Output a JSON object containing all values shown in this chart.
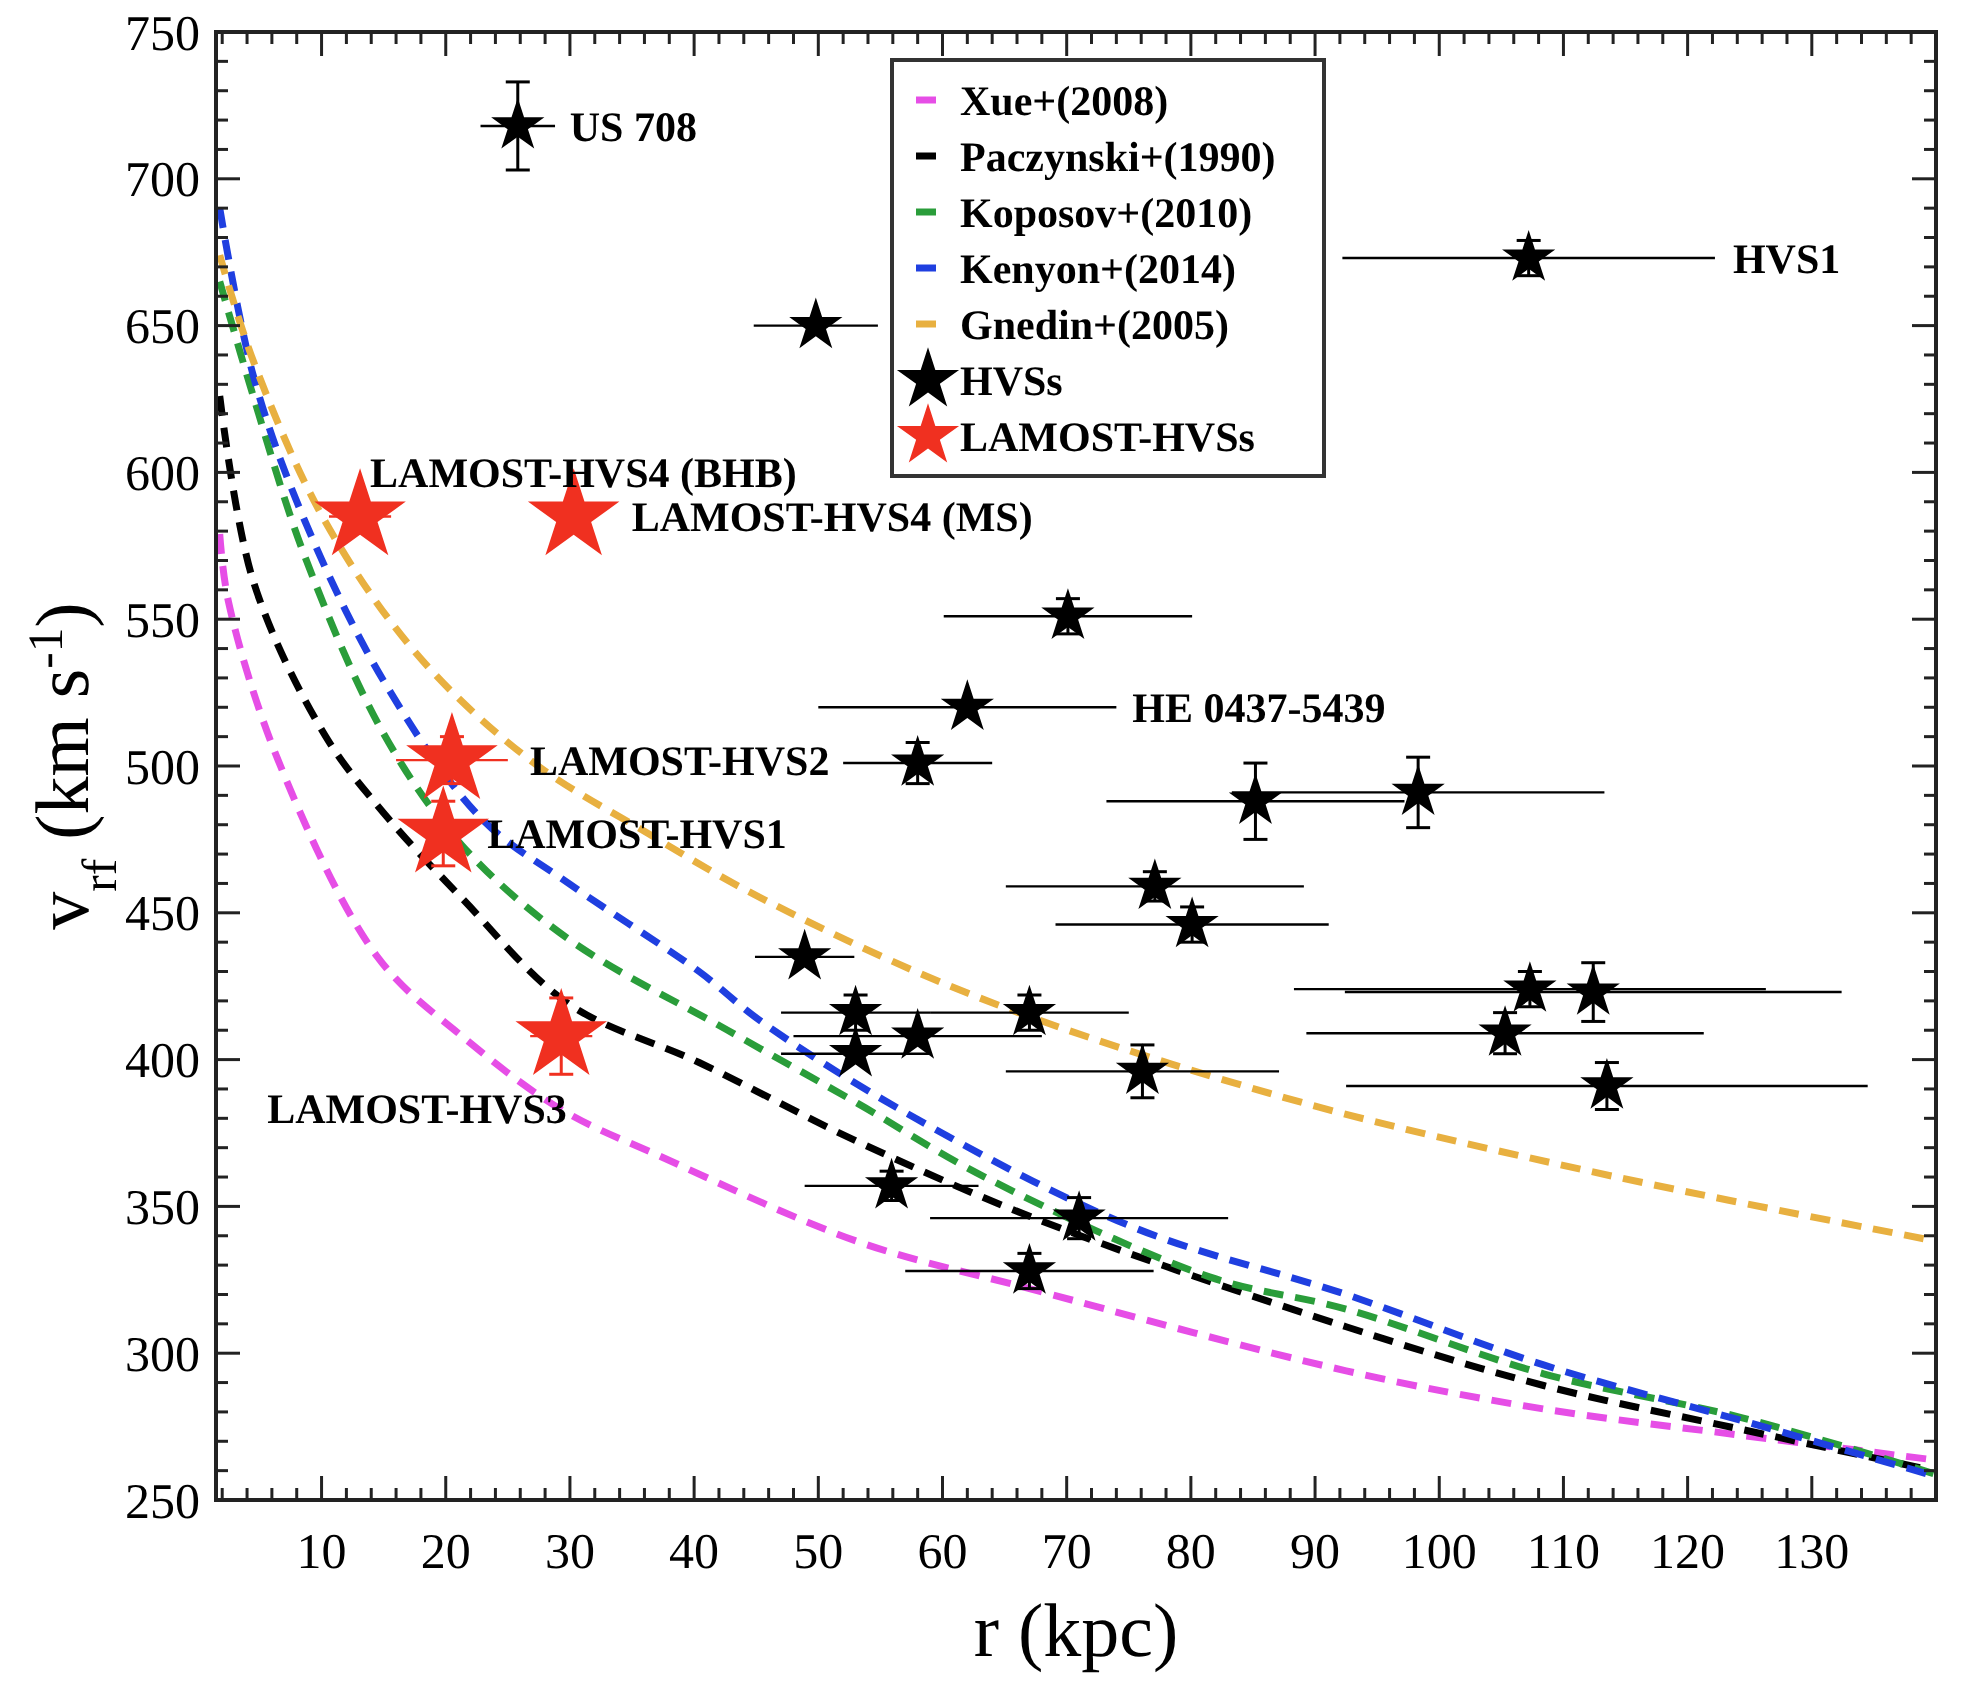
{
  "chart_data": {
    "type": "scatter",
    "xlabel": "r (kpc)",
    "ylabel": "v$_{rf}$ (km s$^{-1}$)",
    "xlim": [
      1.5,
      140
    ],
    "ylim": [
      250,
      750
    ],
    "xticks": [
      10,
      20,
      30,
      40,
      50,
      60,
      70,
      80,
      90,
      100,
      110,
      120,
      130,
      {
        "value": 2,
        "label": null
      },
      {
        "value": 4,
        "label": null
      },
      {
        "value": 6,
        "label": null
      },
      {
        "value": 8,
        "label": null
      },
      {
        "value": 12,
        "label": null
      },
      {
        "value": 14,
        "label": null
      },
      {
        "value": 16,
        "label": null
      },
      {
        "value": 18,
        "label": null
      },
      {
        "value": 22,
        "label": null
      },
      {
        "value": 24,
        "label": null
      },
      {
        "value": 26,
        "label": null
      },
      {
        "value": 28,
        "label": null
      },
      {
        "value": 32,
        "label": null
      },
      {
        "value": 34,
        "label": null
      },
      {
        "value": 36,
        "label": null
      },
      {
        "value": 38,
        "label": null
      },
      {
        "value": 42,
        "label": null
      },
      {
        "value": 44,
        "label": null
      },
      {
        "value": 46,
        "label": null
      },
      {
        "value": 48,
        "label": null
      },
      {
        "value": 52,
        "label": null
      },
      {
        "value": 54,
        "label": null
      },
      {
        "value": 56,
        "label": null
      },
      {
        "value": 58,
        "label": null
      },
      {
        "value": 62,
        "label": null
      },
      {
        "value": 64,
        "label": null
      },
      {
        "value": 66,
        "label": null
      },
      {
        "value": 68,
        "label": null
      },
      {
        "value": 72,
        "label": null
      },
      {
        "value": 74,
        "label": null
      },
      {
        "value": 76,
        "label": null
      },
      {
        "value": 78,
        "label": null
      },
      {
        "value": 82,
        "label": null
      },
      {
        "value": 84,
        "label": null
      },
      {
        "value": 86,
        "label": null
      },
      {
        "value": 88,
        "label": null
      },
      {
        "value": 92,
        "label": null
      },
      {
        "value": 94,
        "label": null
      },
      {
        "value": 96,
        "label": null
      },
      {
        "value": 98,
        "label": null
      },
      {
        "value": 102,
        "label": null
      },
      {
        "value": 104,
        "label": null
      },
      {
        "value": 106,
        "label": null
      },
      {
        "value": 108,
        "label": null
      },
      {
        "value": 112,
        "label": null
      },
      {
        "value": 114,
        "label": null
      },
      {
        "value": 116,
        "label": null
      },
      {
        "value": 118,
        "label": null
      },
      {
        "value": 122,
        "label": null
      },
      {
        "value": 124,
        "label": null
      },
      {
        "value": 126,
        "label": null
      },
      {
        "value": 128,
        "label": null
      },
      {
        "value": 132,
        "label": null
      },
      {
        "value": 134,
        "label": null
      },
      {
        "value": 136,
        "label": null
      },
      {
        "value": 138,
        "label": null
      }
    ],
    "yticks": [
      250,
      300,
      350,
      400,
      450,
      500,
      550,
      600,
      650,
      700,
      750,
      {
        "value": 260,
        "label": null
      },
      {
        "value": 270,
        "label": null
      },
      {
        "value": 280,
        "label": null
      },
      {
        "value": 290,
        "label": null
      },
      {
        "value": 310,
        "label": null
      },
      {
        "value": 320,
        "label": null
      },
      {
        "value": 330,
        "label": null
      },
      {
        "value": 340,
        "label": null
      },
      {
        "value": 360,
        "label": null
      },
      {
        "value": 370,
        "label": null
      },
      {
        "value": 380,
        "label": null
      },
      {
        "value": 390,
        "label": null
      },
      {
        "value": 410,
        "label": null
      },
      {
        "value": 420,
        "label": null
      },
      {
        "value": 430,
        "label": null
      },
      {
        "value": 440,
        "label": null
      },
      {
        "value": 460,
        "label": null
      },
      {
        "value": 470,
        "label": null
      },
      {
        "value": 480,
        "label": null
      },
      {
        "value": 490,
        "label": null
      },
      {
        "value": 510,
        "label": null
      },
      {
        "value": 520,
        "label": null
      },
      {
        "value": 530,
        "label": null
      },
      {
        "value": 540,
        "label": null
      },
      {
        "value": 560,
        "label": null
      },
      {
        "value": 570,
        "label": null
      },
      {
        "value": 580,
        "label": null
      },
      {
        "value": 590,
        "label": null
      },
      {
        "value": 610,
        "label": null
      },
      {
        "value": 620,
        "label": null
      },
      {
        "value": 630,
        "label": null
      },
      {
        "value": 640,
        "label": null
      },
      {
        "value": 660,
        "label": null
      },
      {
        "value": 670,
        "label": null
      },
      {
        "value": 680,
        "label": null
      },
      {
        "value": 690,
        "label": null
      },
      {
        "value": 710,
        "label": null
      },
      {
        "value": 720,
        "label": null
      },
      {
        "value": 730,
        "label": null
      },
      {
        "value": 740,
        "label": null
      }
    ],
    "grid": false,
    "legend": "top",
    "line_style": "dashed",
    "series": [
      {
        "name": "Xue+(2008)",
        "type": "line",
        "marker": "none",
        "color": "#e64ee6",
        "x": [
          1.8,
          2.5,
          6.5,
          14.5,
          21.3,
          29.3,
          37.3,
          53.2,
          67,
          92.5,
          108.4,
          124.4,
          139.2
        ],
        "values": [
          579,
          556,
          502,
          435,
          408,
          383,
          367,
          338,
          322,
          294,
          281,
          272,
          264
        ]
      },
      {
        "name": "Paczynski+(1990)",
        "type": "line",
        "marker": "none",
        "color": "#000000",
        "x": [
          1.8,
          4.5,
          10.2,
          15,
          21.3,
          29.9,
          40.4,
          53.2,
          68,
          92.5,
          108.4,
          124.4,
          138.7
        ],
        "values": [
          626,
          563,
          511,
          484,
          455,
          419,
          399,
          372,
          345,
          309,
          289,
          274,
          261
        ]
      },
      {
        "name": "Koposov+(2010)",
        "type": "line",
        "marker": "none",
        "color": "#2a9d3a",
        "x": [
          1.8,
          4.5,
          8.6,
          15,
          21.3,
          29.9,
          42.7,
          53.2,
          63.4,
          81.5,
          92.5,
          108.4,
          124.4,
          139.8
        ],
        "values": [
          665,
          626,
          572,
          511,
          473,
          441,
          410,
          385,
          360,
          326,
          315,
          293,
          278,
          259
        ]
      },
      {
        "name": "Kenyon+(2014)",
        "type": "line",
        "marker": "none",
        "color": "#1f3fe0",
        "x": [
          1.8,
          4.5,
          8.6,
          15,
          22.9,
          29.9,
          40.4,
          45.4,
          57,
          75.3,
          92.5,
          108.4,
          124.4,
          139.2
        ],
        "values": [
          690,
          633,
          584,
          529,
          482,
          460,
          430,
          413,
          382,
          343,
          320,
          296,
          277,
          259
        ]
      },
      {
        "name": "Gnedin+(2005)",
        "type": "line",
        "marker": "none",
        "color": "#e8b040",
        "x": [
          1.8,
          4.5,
          10.2,
          17.7,
          26.8,
          36.3,
          45.4,
          63,
          87.6,
          112.1,
          139
        ],
        "values": [
          674,
          638,
          584,
          538,
          502,
          477,
          455,
          421,
          387,
          362,
          339
        ]
      },
      {
        "name": "HVSs",
        "marker": "star",
        "color": "#000000",
        "x": [
          25.8,
          49.8,
          107.2,
          70.1,
          62,
          58,
          85.2,
          98.3,
          77.1,
          80.1,
          48.9,
          53,
          58,
          53,
          67,
          76.1,
          107.3,
          112.4,
          105.3,
          113.5,
          55.9,
          71,
          67
        ],
        "values": [
          718,
          650,
          673,
          551,
          520,
          501,
          488,
          491,
          459,
          446,
          435,
          416,
          408,
          402,
          416,
          396,
          424,
          423,
          409,
          391,
          357,
          346,
          328
        ],
        "errors": [
          15,
          null,
          6,
          6,
          null,
          7,
          13,
          12,
          5,
          6,
          null,
          6,
          null,
          null,
          6,
          9,
          6,
          10,
          7,
          8,
          5,
          7,
          6
        ],
        "xerrors": [
          3,
          5,
          15,
          10,
          12,
          6,
          12,
          15,
          12,
          11,
          4,
          6,
          10,
          6,
          8,
          11,
          19,
          20,
          16,
          21,
          7,
          12,
          10
        ]
      },
      {
        "name": "LAMOST-HVSs",
        "marker": "star",
        "color": "#f03020",
        "x": [
          13.1,
          30.3,
          20.5,
          19.8,
          29.3
        ],
        "values": [
          585,
          585,
          502,
          477,
          408
        ],
        "errors": [
          null,
          null,
          8,
          11,
          13
        ],
        "xerrors": [
          2.5,
          null,
          4.5,
          null,
          2.5
        ]
      }
    ],
    "annotations": [
      {
        "text": "US 708",
        "x": 25.8,
        "y": 718
      },
      {
        "text": "HVS1",
        "x": 122.2,
        "y": 673
      },
      {
        "text": "LAMOST-HVS4 (BHB)",
        "x": 13.1,
        "y": 585
      },
      {
        "text": "LAMOST-HVS4 (MS)",
        "x": 30.3,
        "y": 585
      },
      {
        "text": "HE 0437-5439",
        "x": 74,
        "y": 520
      },
      {
        "text": "LAMOST-HVS2",
        "x": 20.5,
        "y": 502
      },
      {
        "text": "LAMOST-HVS1",
        "x": 19.8,
        "y": 477
      },
      {
        "text": "LAMOST-HVS3",
        "x": 29.3,
        "y": 408
      }
    ]
  }
}
